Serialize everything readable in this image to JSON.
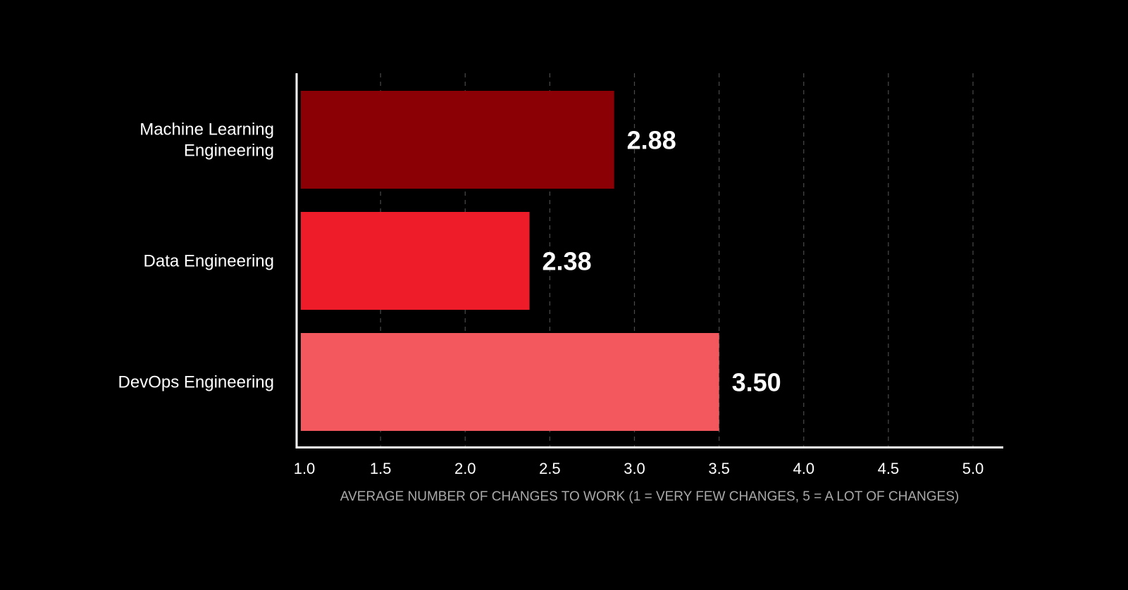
{
  "chart_data": {
    "type": "bar",
    "orientation": "horizontal",
    "title": "",
    "categories": [
      [
        "Machine Learning",
        "Engineering"
      ],
      [
        "Data Engineering"
      ],
      [
        "DevOps Engineering"
      ]
    ],
    "values": [
      2.88,
      2.38,
      3.5
    ],
    "value_labels": [
      "2.88",
      "2.38",
      "3.50"
    ],
    "colors": [
      "#8b0004",
      "#ed1c28",
      "#f2585e"
    ],
    "xlim": [
      1.0,
      5.0
    ],
    "xticks": [
      1.0,
      1.5,
      2.0,
      2.5,
      3.0,
      3.5,
      4.0,
      4.5,
      5.0
    ],
    "xtick_labels": [
      "1.0",
      "1.5",
      "2.0",
      "2.5",
      "3.0",
      "3.5",
      "4.0",
      "4.5",
      "5.0"
    ],
    "xlabel": "AVERAGE NUMBER OF CHANGES TO WORK (1 = VERY FEW CHANGES, 5 = A LOT OF CHANGES)",
    "ylabel": "",
    "grid": "vertical-dashed",
    "legend": "none"
  }
}
